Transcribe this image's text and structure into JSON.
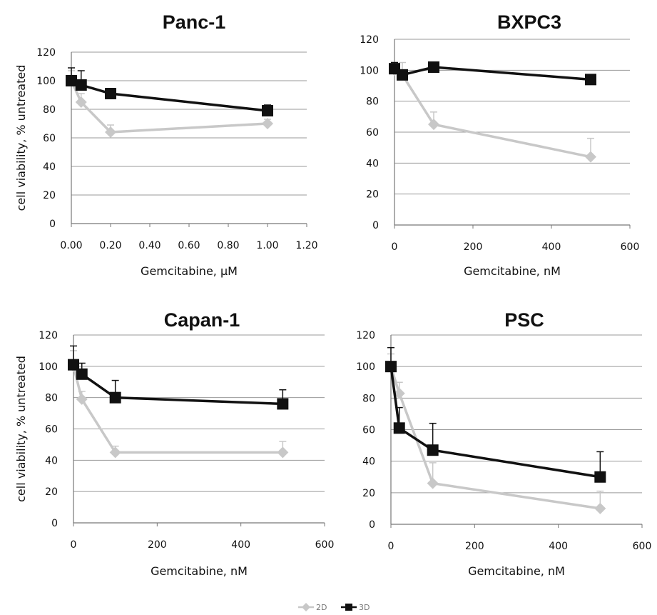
{
  "chart_data": [
    {
      "type": "line",
      "title": "Panc-1",
      "xlabel": "Gemcitabine, μM",
      "ylabel": "cell viability, % untreated",
      "xlim": [
        0,
        1.2
      ],
      "ylim": [
        0,
        120
      ],
      "xticks": [
        "0.00",
        "0.20",
        "0.40",
        "0.60",
        "0.80",
        "1.00",
        "1.20"
      ],
      "yticks": [
        "0",
        "20",
        "40",
        "60",
        "80",
        "100",
        "120"
      ],
      "grid": "horizontal",
      "series": [
        {
          "name": "2D",
          "color": "#c8c8c8",
          "marker": "diamond",
          "x": [
            0,
            0.05,
            0.2,
            1.0
          ],
          "y": [
            100,
            85,
            64,
            70
          ],
          "err": [
            7,
            6,
            5,
            3
          ]
        },
        {
          "name": "3D",
          "color": "#111111",
          "marker": "square",
          "x": [
            0,
            0.05,
            0.2,
            1.0
          ],
          "y": [
            100,
            97,
            91,
            79
          ],
          "err": [
            9,
            10,
            2,
            4
          ]
        }
      ]
    },
    {
      "type": "line",
      "title": "BXPC3",
      "xlabel": "Gemcitabine, nM",
      "ylabel": "",
      "xlim": [
        0,
        600
      ],
      "ylim": [
        0,
        120
      ],
      "xticks": [
        "0",
        "200",
        "400",
        "600"
      ],
      "yticks": [
        "0",
        "20",
        "40",
        "60",
        "80",
        "100",
        "120"
      ],
      "grid": "horizontal",
      "series": [
        {
          "name": "2D",
          "color": "#c8c8c8",
          "marker": "diamond",
          "x": [
            0,
            20,
            100,
            500
          ],
          "y": [
            100,
            97,
            65,
            44
          ],
          "err": [
            5,
            8,
            8,
            12
          ]
        },
        {
          "name": "3D",
          "color": "#111111",
          "marker": "square",
          "x": [
            0,
            20,
            100,
            500
          ],
          "y": [
            101,
            97,
            102,
            94
          ],
          "err": [
            4,
            3,
            3,
            2
          ]
        }
      ]
    },
    {
      "type": "line",
      "title": "Capan-1",
      "xlabel": "Gemcitabine, nM",
      "ylabel": "cell viability, % untreated",
      "xlim": [
        0,
        600
      ],
      "ylim": [
        0,
        120
      ],
      "xticks": [
        "0",
        "200",
        "400",
        "600"
      ],
      "yticks": [
        "0",
        "20",
        "40",
        "60",
        "80",
        "100",
        "120"
      ],
      "grid": "horizontal",
      "series": [
        {
          "name": "2D",
          "color": "#c8c8c8",
          "marker": "diamond",
          "x": [
            0,
            20,
            100,
            500
          ],
          "y": [
            100,
            79,
            45,
            45
          ],
          "err": [
            10,
            5,
            4,
            7
          ]
        },
        {
          "name": "3D",
          "color": "#111111",
          "marker": "square",
          "x": [
            0,
            20,
            100,
            500
          ],
          "y": [
            101,
            95,
            80,
            76
          ],
          "err": [
            12,
            7,
            11,
            9
          ]
        }
      ]
    },
    {
      "type": "line",
      "title": "PSC",
      "xlabel": "Gemcitabine, nM",
      "ylabel": "",
      "xlim": [
        0,
        600
      ],
      "ylim": [
        0,
        120
      ],
      "xticks": [
        "0",
        "200",
        "400",
        "600"
      ],
      "yticks": [
        "0",
        "20",
        "40",
        "60",
        "80",
        "100",
        "120"
      ],
      "grid": "horizontal",
      "series": [
        {
          "name": "2D",
          "color": "#c8c8c8",
          "marker": "diamond",
          "x": [
            0,
            20,
            100,
            500
          ],
          "y": [
            100,
            83,
            26,
            10
          ],
          "err": [
            8,
            7,
            13,
            11
          ]
        },
        {
          "name": "3D",
          "color": "#111111",
          "marker": "square",
          "x": [
            0,
            20,
            100,
            500
          ],
          "y": [
            100,
            61,
            47,
            30
          ],
          "err": [
            12,
            13,
            17,
            16
          ]
        }
      ]
    }
  ],
  "legend": {
    "position": "bottom-center",
    "items": [
      {
        "label": "2D",
        "color": "#c8c8c8",
        "marker": "diamond"
      },
      {
        "label": "3D",
        "color": "#111111",
        "marker": "square"
      }
    ]
  }
}
